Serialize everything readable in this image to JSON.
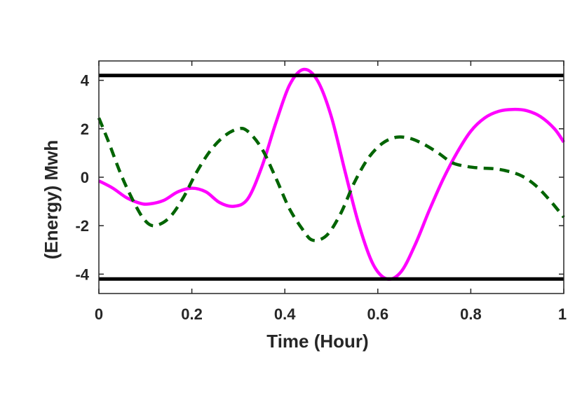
{
  "chart_data": {
    "type": "line",
    "xlabel": "Time (Hour)",
    "ylabel": "(Energy) Mwh",
    "xlim": [
      0,
      1
    ],
    "ylim": [
      -4.8,
      4.8
    ],
    "x_ticks": [
      0,
      0.2,
      0.4,
      0.6,
      0.8,
      1
    ],
    "y_ticks": [
      -4,
      -2,
      0,
      2,
      4
    ],
    "x_tick_labels": [
      "0",
      "0.2",
      "0.4",
      "0.6",
      "0.8",
      "1"
    ],
    "y_tick_labels": [
      "-4",
      "-2",
      "0",
      "2",
      "4"
    ],
    "grid": false,
    "legend": "none",
    "series": [
      {
        "style": "solid",
        "color": "#ff00ff",
        "points": [
          [
            0,
            -0.15
          ],
          [
            0.03,
            -0.45
          ],
          [
            0.06,
            -0.85
          ],
          [
            0.09,
            -1.08
          ],
          [
            0.11,
            -1.1
          ],
          [
            0.14,
            -0.95
          ],
          [
            0.17,
            -0.6
          ],
          [
            0.2,
            -0.45
          ],
          [
            0.23,
            -0.6
          ],
          [
            0.26,
            -1.05
          ],
          [
            0.29,
            -1.2
          ],
          [
            0.32,
            -0.9
          ],
          [
            0.35,
            0.4
          ],
          [
            0.38,
            2.2
          ],
          [
            0.41,
            3.8
          ],
          [
            0.44,
            4.45
          ],
          [
            0.47,
            4.0
          ],
          [
            0.5,
            2.5
          ],
          [
            0.53,
            0.2
          ],
          [
            0.56,
            -2.0
          ],
          [
            0.59,
            -3.6
          ],
          [
            0.62,
            -4.2
          ],
          [
            0.65,
            -3.9
          ],
          [
            0.68,
            -2.8
          ],
          [
            0.71,
            -1.4
          ],
          [
            0.74,
            -0.1
          ],
          [
            0.77,
            1.0
          ],
          [
            0.8,
            1.9
          ],
          [
            0.83,
            2.45
          ],
          [
            0.86,
            2.72
          ],
          [
            0.89,
            2.8
          ],
          [
            0.92,
            2.75
          ],
          [
            0.95,
            2.5
          ],
          [
            0.98,
            2.0
          ],
          [
            1.0,
            1.45
          ]
        ]
      },
      {
        "style": "dashed",
        "color": "#006400",
        "points": [
          [
            0,
            2.45
          ],
          [
            0.02,
            1.5
          ],
          [
            0.05,
            0.0
          ],
          [
            0.08,
            -1.2
          ],
          [
            0.1,
            -1.8
          ],
          [
            0.12,
            -2.0
          ],
          [
            0.15,
            -1.7
          ],
          [
            0.18,
            -0.9
          ],
          [
            0.21,
            0.2
          ],
          [
            0.24,
            1.1
          ],
          [
            0.27,
            1.7
          ],
          [
            0.3,
            2.0
          ],
          [
            0.32,
            1.9
          ],
          [
            0.35,
            1.2
          ],
          [
            0.38,
            0.0
          ],
          [
            0.41,
            -1.3
          ],
          [
            0.44,
            -2.2
          ],
          [
            0.46,
            -2.6
          ],
          [
            0.49,
            -2.4
          ],
          [
            0.52,
            -1.5
          ],
          [
            0.55,
            -0.2
          ],
          [
            0.58,
            0.8
          ],
          [
            0.61,
            1.4
          ],
          [
            0.64,
            1.65
          ],
          [
            0.67,
            1.6
          ],
          [
            0.7,
            1.35
          ],
          [
            0.73,
            1.0
          ],
          [
            0.76,
            0.6
          ],
          [
            0.79,
            0.45
          ],
          [
            0.82,
            0.38
          ],
          [
            0.85,
            0.35
          ],
          [
            0.88,
            0.25
          ],
          [
            0.91,
            0.05
          ],
          [
            0.94,
            -0.35
          ],
          [
            0.97,
            -0.95
          ],
          [
            1.0,
            -1.65
          ]
        ]
      },
      {
        "style": "solid",
        "color": "#000000",
        "points": [
          [
            0,
            4.2
          ],
          [
            1,
            4.2
          ]
        ]
      },
      {
        "style": "solid",
        "color": "#000000",
        "points": [
          [
            0,
            -4.2
          ],
          [
            1,
            -4.2
          ]
        ]
      }
    ]
  }
}
